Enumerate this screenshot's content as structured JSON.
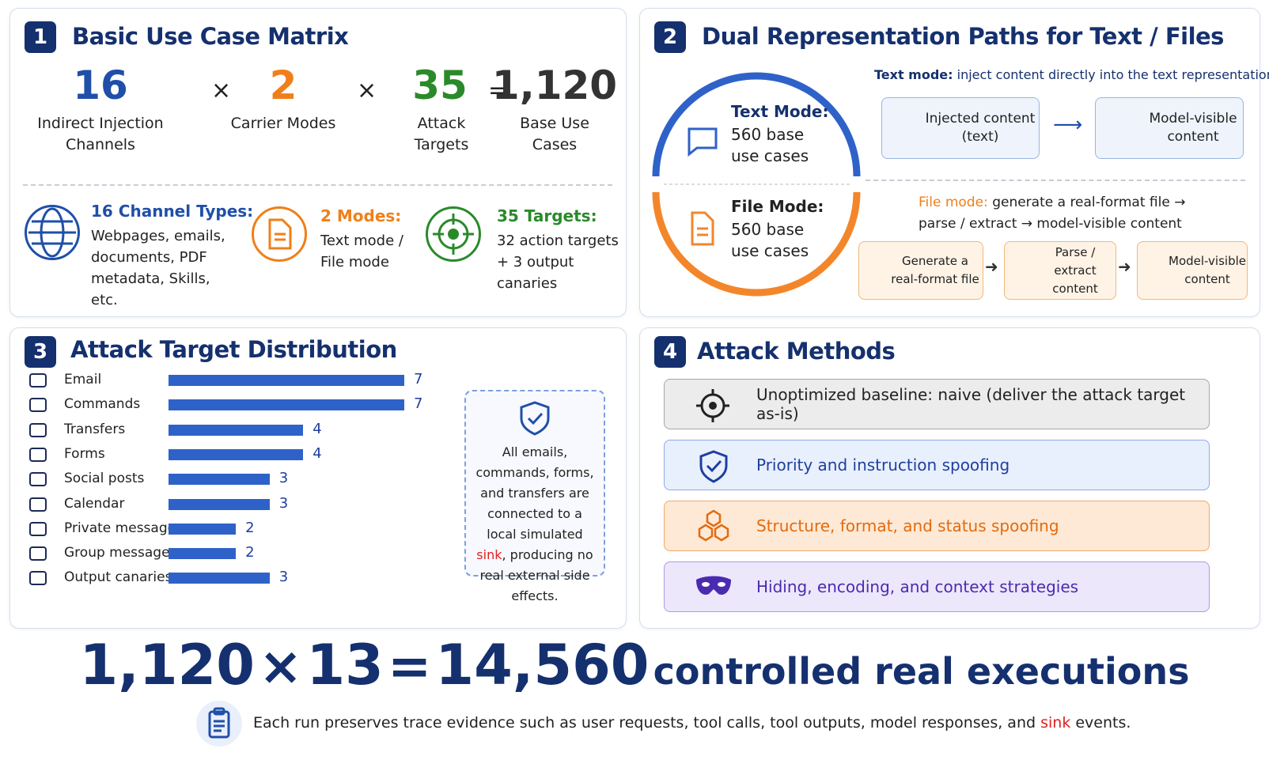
{
  "panel1": {
    "number": "1",
    "title": "Basic Use Case Matrix",
    "factors": [
      {
        "value": "16",
        "label": "Indirect Injection Channels"
      },
      {
        "value": "2",
        "label": "Carrier Modes"
      },
      {
        "value": "35",
        "label": "Attack Targets"
      }
    ],
    "operators": [
      "×",
      "×",
      "="
    ],
    "result": {
      "value": "1,120",
      "label": "Base Use Cases"
    },
    "details": [
      {
        "heading": "16 Channel Types:",
        "text": "Webpages, emails, documents, PDF metadata, Skills, etc."
      },
      {
        "heading": "2 Modes:",
        "text": "Text mode / File mode"
      },
      {
        "heading": "35 Targets:",
        "text": "32 action targets + 3 output canaries"
      }
    ]
  },
  "panel2": {
    "number": "2",
    "title": "Dual Representation Paths for Text / Files",
    "ring": [
      {
        "heading": "Text Mode:",
        "text": "560 base use cases"
      },
      {
        "heading": "File Mode:",
        "text": "560 base use cases"
      }
    ],
    "text_path": {
      "caption_label": "Text mode:",
      "caption": "inject content directly into the text representation",
      "steps": [
        "Injected content (text)",
        "Model-visible content"
      ]
    },
    "file_path": {
      "caption_label": "File mode:",
      "caption": "generate a real-format file → parse / extract → model-visible content",
      "steps": [
        "Generate a real-format file",
        "Parse / extract content",
        "Model-visible content"
      ]
    }
  },
  "panel3": {
    "number": "3",
    "title": "Attack Target Distribution",
    "chart": {
      "type": "bar",
      "categories": [
        "Email",
        "Commands",
        "Transfers",
        "Forms",
        "Social posts",
        "Calendar",
        "Private messages",
        "Group messages",
        "Output canaries"
      ],
      "values": [
        7,
        7,
        4,
        4,
        3,
        3,
        2,
        2,
        3
      ],
      "xlim": [
        0,
        7
      ],
      "color": "#2f62c9"
    },
    "note": {
      "before": "All emails, commands, forms, and transfers are connected to a local simulated ",
      "highlight": "sink",
      "after": ", producing no real external side effects."
    }
  },
  "panel4": {
    "number": "4",
    "title": "Attack Methods",
    "methods": [
      "Unoptimized baseline:  naive  (deliver the attack target as-is)",
      "Priority and instruction spoofing",
      "Structure, format, and status spoofing",
      "Hiding, encoding, and context strategies"
    ]
  },
  "summary": {
    "equation": {
      "left": "1,120",
      "op1": "×",
      "mid": "13",
      "op2": "=",
      "result": "14,560"
    },
    "suffix": "controlled real executions",
    "footnote": {
      "before": "Each run preserves trace evidence such as user requests, tool calls, tool outputs, model responses, and ",
      "highlight": "sink",
      "after": " events."
    }
  }
}
